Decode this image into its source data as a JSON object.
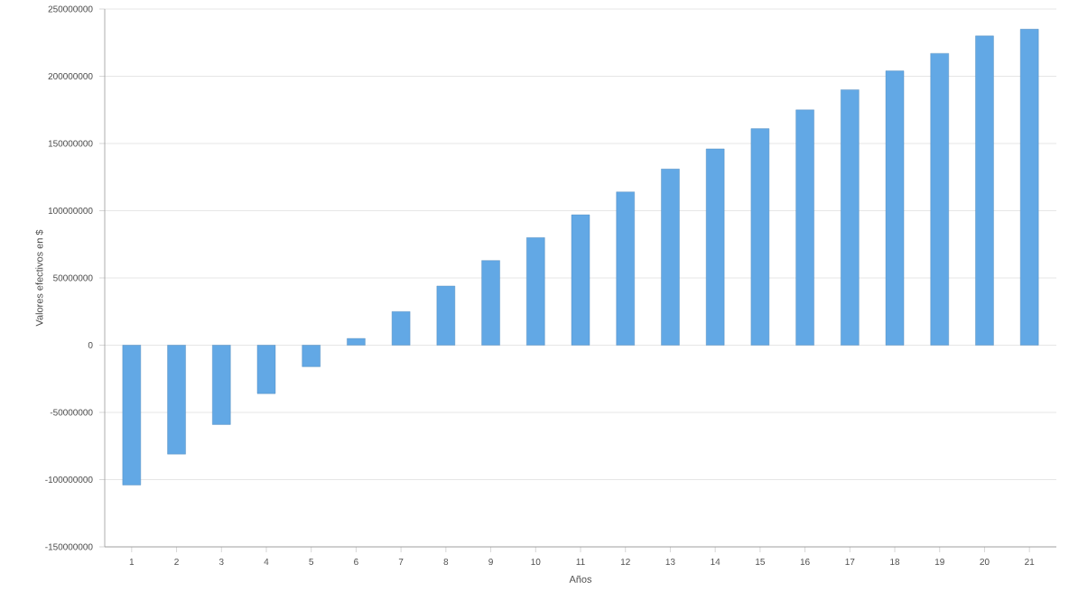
{
  "chart_data": {
    "type": "bar",
    "xlabel": "Años",
    "ylabel": "Valores efectivos en $",
    "categories": [
      "1",
      "2",
      "3",
      "4",
      "5",
      "6",
      "7",
      "8",
      "9",
      "10",
      "11",
      "12",
      "13",
      "14",
      "15",
      "16",
      "17",
      "18",
      "19",
      "20",
      "21"
    ],
    "values": [
      -104000000,
      -81000000,
      -59000000,
      -36000000,
      -16000000,
      5000000,
      25000000,
      44000000,
      63000000,
      80000000,
      97000000,
      114000000,
      131000000,
      146000000,
      161000000,
      175000000,
      190000000,
      204000000,
      217000000,
      230000000,
      235000000
    ],
    "color": "#62a8e5",
    "ylim": [
      -150000000,
      250000000
    ],
    "yticks": [
      -150000000,
      -100000000,
      -50000000,
      0,
      50000000,
      100000000,
      150000000,
      200000000,
      250000000
    ],
    "grid": "y"
  }
}
